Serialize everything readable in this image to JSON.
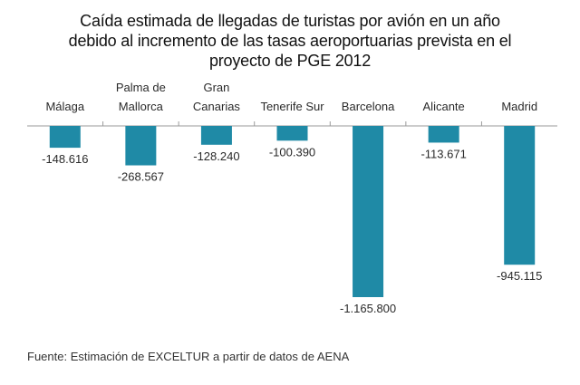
{
  "title_lines": [
    "Caída estimada de llegadas de turistas por avión en un año",
    "debido al incremento de las tasas aeroportuarias prevista en el",
    "proyecto de PGE 2012"
  ],
  "source": "Fuente: Estimación de EXCELTUR a partir de datos de AENA",
  "chart_data": {
    "type": "bar",
    "title": "Caída estimada de llegadas de turistas por avión en un año debido al incremento de las tasas aeroportuarias prevista en el proyecto de PGE 2012",
    "categories": [
      [
        "Málaga"
      ],
      [
        "Palma de",
        "Mallorca"
      ],
      [
        "Gran",
        "Canarias"
      ],
      [
        "Tenerife Sur"
      ],
      [
        "Barcelona"
      ],
      [
        "Alicante"
      ],
      [
        "Madrid"
      ]
    ],
    "values": [
      -148616,
      -268567,
      -128240,
      -100390,
      -1165800,
      -113671,
      -945115
    ],
    "value_labels": [
      "-148.616",
      "-268.567",
      "-128.240",
      "-100.390",
      "-1.165.800",
      "-113.671",
      "-945.115"
    ],
    "xlabel": "",
    "ylabel": "",
    "ylim": [
      -1165800,
      0
    ],
    "category_axis_position": "top",
    "bar_color": "#1f8aa6",
    "grid": false,
    "legend": "none"
  }
}
